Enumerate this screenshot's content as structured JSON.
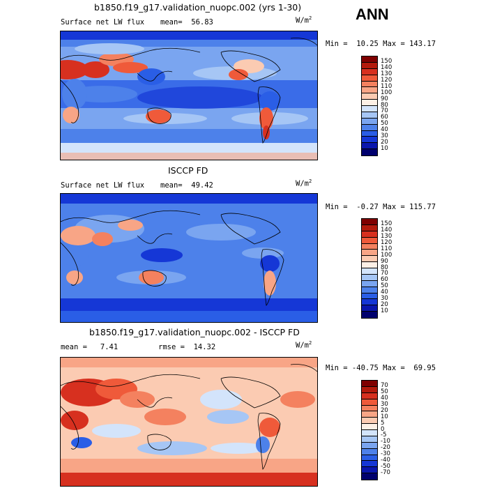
{
  "season": "ANN",
  "panels": [
    {
      "title": "b1850.f19_g17.validation_nuopc.002 (yrs 1-30)",
      "field_label": "Surface net LW flux",
      "stat_label": "mean=  56.83",
      "units_base": "W/m",
      "units_exp": "2",
      "minmax": "Min =  10.25 Max = 143.17",
      "colorbar_labels": [
        "150",
        "140",
        "130",
        "120",
        "110",
        "100",
        "90",
        "80",
        "70",
        "60",
        "50",
        "40",
        "30",
        "20",
        "10"
      ],
      "colors": [
        "#7f0000",
        "#b31a0c",
        "#d7301f",
        "#ef5a3a",
        "#f4815f",
        "#f8a586",
        "#fbcbb2",
        "#fdf0e6",
        "#d3e4fb",
        "#a6c6f5",
        "#7aa5f0",
        "#4d81ea",
        "#2a5ee6",
        "#1537d6",
        "#0a16ad",
        "#00006e"
      ]
    },
    {
      "title": "ISCCP FD",
      "field_label": "Surface net LW flux",
      "stat_label": "mean=  49.42",
      "units_base": "W/m",
      "units_exp": "2",
      "minmax": "Min =  -0.27 Max = 115.77",
      "colorbar_labels": [
        "150",
        "140",
        "130",
        "120",
        "110",
        "100",
        "90",
        "80",
        "70",
        "60",
        "50",
        "40",
        "30",
        "20",
        "10"
      ],
      "colors": [
        "#7f0000",
        "#b31a0c",
        "#d7301f",
        "#ef5a3a",
        "#f4815f",
        "#f8a586",
        "#fbcbb2",
        "#fdf0e6",
        "#d3e4fb",
        "#a6c6f5",
        "#7aa5f0",
        "#4d81ea",
        "#2a5ee6",
        "#1537d6",
        "#0a16ad",
        "#00006e"
      ]
    },
    {
      "title": "b1850.f19_g17.validation_nuopc.002 - ISCCP FD",
      "field_label": "mean =   7.41",
      "stat_label": "rmse =  14.32",
      "units_base": "W/m",
      "units_exp": "2",
      "minmax": "Min = -40.75 Max =  69.95",
      "colorbar_labels": [
        "70",
        "50",
        "40",
        "30",
        "20",
        "10",
        "5",
        "0",
        "-5",
        "-10",
        "-20",
        "-30",
        "-40",
        "-50",
        "-70"
      ],
      "colors": [
        "#7f0000",
        "#b31a0c",
        "#d7301f",
        "#ef5a3a",
        "#f4815f",
        "#f8a586",
        "#fbcbb2",
        "#fdf0e6",
        "#d3e4fb",
        "#a6c6f5",
        "#7aa5f0",
        "#4d81ea",
        "#2a5ee6",
        "#1537d6",
        "#0a16ad",
        "#00006e"
      ]
    }
  ]
}
